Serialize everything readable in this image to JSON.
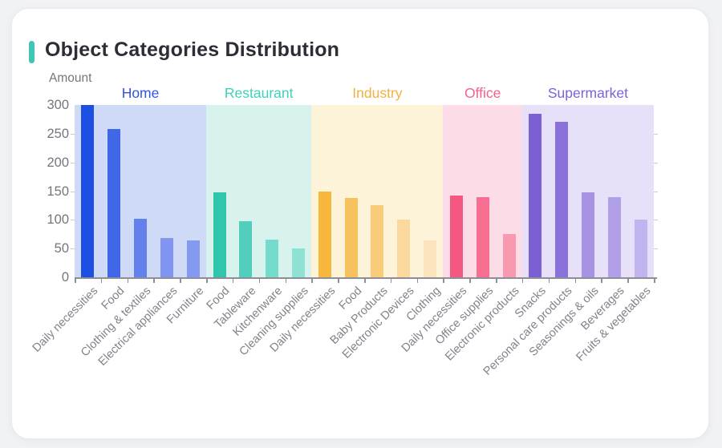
{
  "page": {
    "title": "Object Categories Distribution",
    "accent_color": "#3fc6b7"
  },
  "chart_data": {
    "type": "bar",
    "title": "Object Categories Distribution",
    "ylabel": "Amount",
    "xlabel": "",
    "ylim": [
      0,
      300
    ],
    "y_ticks": [
      0,
      50,
      100,
      150,
      200,
      250,
      300
    ],
    "grid": false,
    "legend_position": "none",
    "groups": [
      {
        "name": "Home",
        "label_color": "#2f54e0",
        "band_color": "#cfdaf6",
        "categories": [
          "Daily necessities",
          "Food",
          "Clothing & textiles",
          "Electrical appliances",
          "Furniture"
        ],
        "values": [
          300,
          258,
          102,
          69,
          64
        ],
        "bar_colors": [
          "#1d4fe2",
          "#4067e8",
          "#6380ec",
          "#8095ef",
          "#8499f0"
        ]
      },
      {
        "name": "Restaurant",
        "label_color": "#3fd0bb",
        "band_color": "#d8f2ee",
        "categories": [
          "Food",
          "Tableware",
          "Kitchenware",
          "Cleaning supplies"
        ],
        "values": [
          148,
          97,
          65,
          50
        ],
        "bar_colors": [
          "#2fc6ad",
          "#52cfbb",
          "#75dbca",
          "#8fe1d3"
        ]
      },
      {
        "name": "Industry",
        "label_color": "#f0b140",
        "band_color": "#fdf3d8",
        "categories": [
          "Daily necessities",
          "Food",
          "Baby Products",
          "Electronic Devices",
          "Clothing"
        ],
        "values": [
          150,
          138,
          126,
          100,
          64
        ],
        "bar_colors": [
          "#f6b73c",
          "#f7c25d",
          "#f8cc7b",
          "#fad89e",
          "#fbe3bd"
        ]
      },
      {
        "name": "Office",
        "label_color": "#f4608c",
        "band_color": "#fcdce6",
        "categories": [
          "Daily necessities",
          "Office supplies",
          "Electronic products"
        ],
        "values": [
          142,
          139,
          75
        ],
        "bar_colors": [
          "#f4577f",
          "#f66e90",
          "#f999af"
        ]
      },
      {
        "name": "Supermarket",
        "label_color": "#7e61dc",
        "band_color": "#e7e0f9",
        "categories": [
          "Snacks",
          "Personal care products",
          "Seasonings & oils",
          "Beverages",
          "Fruits & vegetables"
        ],
        "values": [
          285,
          271,
          148,
          140,
          101
        ],
        "bar_colors": [
          "#7c5fd3",
          "#8b71da",
          "#a793e3",
          "#b1a0e7",
          "#c2b4ee"
        ]
      }
    ]
  }
}
